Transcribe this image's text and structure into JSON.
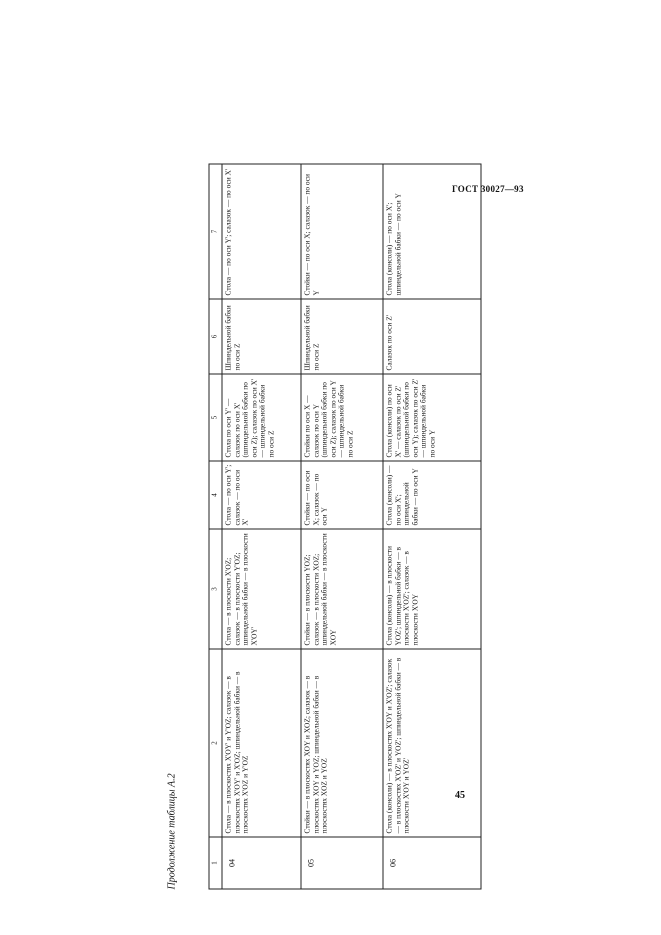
{
  "header": {
    "doc_code": "ГОСТ 30027—93"
  },
  "caption": "Продолжение таблицы А.2",
  "table": {
    "columns": [
      "1",
      "2",
      "3",
      "4",
      "5",
      "6",
      "7"
    ],
    "rows": [
      [
        "04",
        "Стола — в плоскостях X'OY' и Y'OZ; салазок — в плоскостях X'OY' и X'OZ; шпиндельной бабки — в плоскостях X'OZ и Y'OZ",
        "Стола — в плоскости X'OZ; салазок — в плоскости Y'OZ; шпиндельной бабки — в плоскости X'OY'",
        "Стола — по оси Y'; салазок — по оси X'",
        "Стола по оси Y' — салазок по оси X' (шпиндельной бабки по оси Z); салазок по оси X' — шпиндельной бабки по оси Z",
        "Шпиндельной бабки по оси Z",
        "Стола — по оси Y'; салазок — по оси X'"
      ],
      [
        "05",
        "Стойки — в плоскостях XOY и XOZ; салазок — в плоскостях XOY и YOZ; шпиндельной бабки — в плоскостях XOZ и YOZ",
        "Стойки — в плоскости YOZ; салазок — в плоскости XOZ; шпиндельной бабки — в плоскости XOY",
        "Стойки — по оси X; салазок — по оси Y",
        "Стойки по оси X — салазок по оси Y (шпиндельной бабки по оси Z); салазок по оси Y — шпиндельной бабки по оси Z",
        "Шпиндельной бабки по оси Z",
        "Стойки — по оси X; салазок — по оси Y"
      ],
      [
        "06",
        "Стола (консоли) — в плоскостях X'OY и X'OZ'; салазок — в плоскостях X'OZ' и YOZ'; шпиндельной бабки — в плоскости X'OY и YOZ'",
        "Стола (консоли) — в плоскости YOZ'; шпиндельной бабки — в плоскости X'OZ'; салазок — в плоскости X'OY",
        "Стола (консоли) — по оси X'; шпиндельной бабки — по оси Y",
        "Стола (консоли) по оси X' — салазок по оси Z' (шпиндельной бабки по оси Y); салазок по оси Z' — шпиндельной бабки по оси Y",
        "Салазок по оси Z'",
        "Стола (консоли) — по оси X'; шпиндельной бабки — по оси Y"
      ]
    ]
  },
  "footer": {
    "page_number": "45"
  }
}
